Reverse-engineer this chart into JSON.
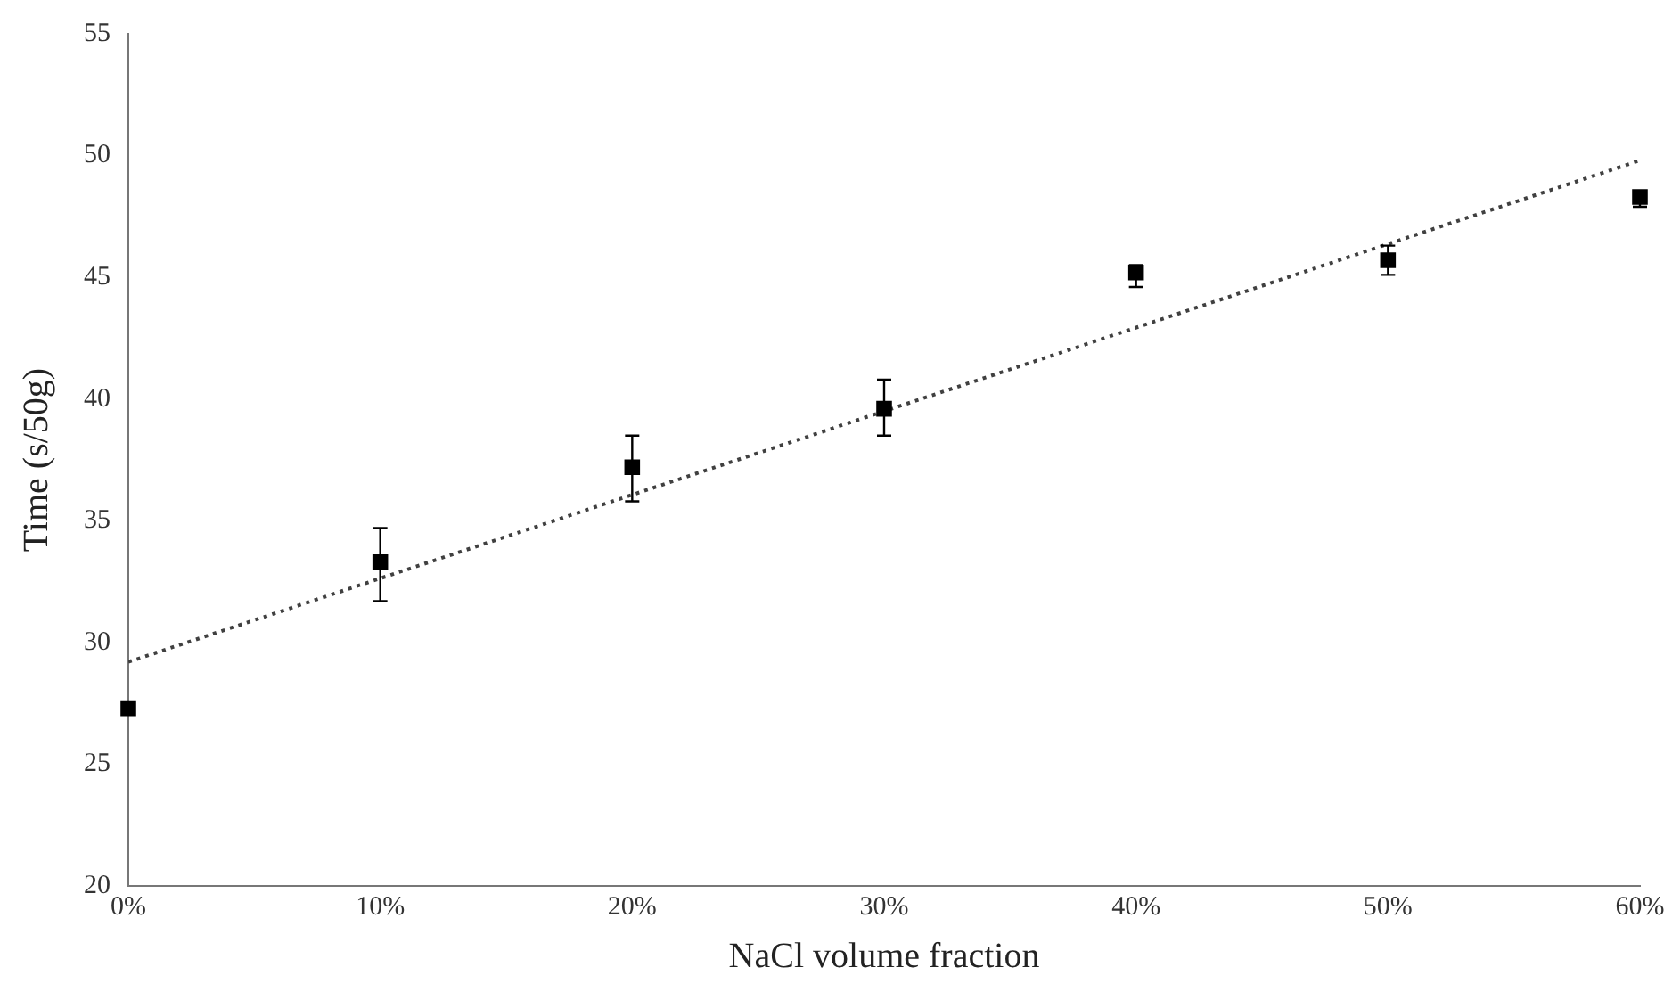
{
  "chart_data": {
    "type": "scatter",
    "xlabel": "NaCl volume fraction",
    "ylabel": "Time (s/50g)",
    "xlim": [
      0,
      60
    ],
    "xticks": [
      {
        "value": 0,
        "label": "0%"
      },
      {
        "value": 10,
        "label": "10%"
      },
      {
        "value": 20,
        "label": "20%"
      },
      {
        "value": 30,
        "label": "30%"
      },
      {
        "value": 40,
        "label": "40%"
      },
      {
        "value": 50,
        "label": "50%"
      },
      {
        "value": 60,
        "label": "60%"
      }
    ],
    "ylim": [
      20,
      55
    ],
    "yticks": [
      20,
      25,
      30,
      35,
      40,
      45,
      50,
      55
    ],
    "grid": false,
    "legend": false,
    "marker": "square",
    "series": [
      {
        "color": "#000000",
        "x": [
          0,
          10,
          20,
          30,
          40,
          50,
          60
        ],
        "values": [
          27.3,
          33.3,
          37.2,
          39.6,
          45.2,
          45.7,
          48.3
        ],
        "errors": [
          null,
          [
            31.7,
            34.7
          ],
          [
            35.8,
            38.5
          ],
          [
            38.5,
            40.8
          ],
          [
            44.6,
            45.5
          ],
          [
            45.1,
            46.3
          ],
          [
            47.9,
            48.5
          ]
        ]
      },
      {
        "type": "line",
        "color": "#404040",
        "line_style": "dotted",
        "marker": "none",
        "x": [
          0,
          60
        ],
        "values": [
          29.2,
          49.8
        ]
      }
    ]
  }
}
